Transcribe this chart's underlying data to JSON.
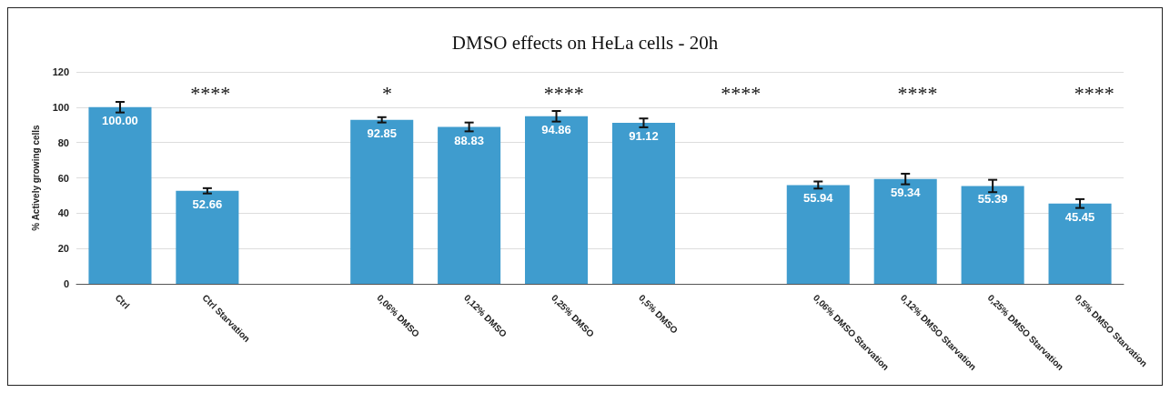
{
  "chart_data": {
    "type": "bar",
    "title": "DMSO effects on HeLa cells - 20h",
    "ylabel": "% Actively growing cells",
    "categories": [
      "Ctrl",
      "Ctrl Starvation",
      null,
      "0,06% DMSO",
      "0,12% DMSO",
      "0,25% DMSO",
      "0,5% DMSO",
      null,
      "0,06% DMSO Starvation",
      "0,12% DMSO Starvation",
      "0,25% DMSO Starvation",
      "0,5% DMSO Starvation"
    ],
    "values": [
      100.0,
      52.66,
      null,
      92.85,
      88.83,
      94.86,
      91.12,
      null,
      55.94,
      59.34,
      55.39,
      45.45
    ],
    "value_labels": [
      "100.00",
      "52.66",
      null,
      "92.85",
      "88.83",
      "94.86",
      "91.12",
      null,
      "55.94",
      "59.34",
      "55.39",
      "45.45"
    ],
    "errors": [
      3,
      1.5,
      null,
      1.5,
      2.5,
      3,
      2.5,
      null,
      2,
      3,
      3.5,
      2.5
    ],
    "color": "#3f9cce",
    "ylim": [
      0,
      120
    ],
    "yticks": [
      0,
      20,
      40,
      60,
      80,
      100,
      120
    ],
    "grid": "y",
    "annotations": [
      "****",
      "*",
      "****",
      "****",
      "****",
      "****"
    ]
  }
}
